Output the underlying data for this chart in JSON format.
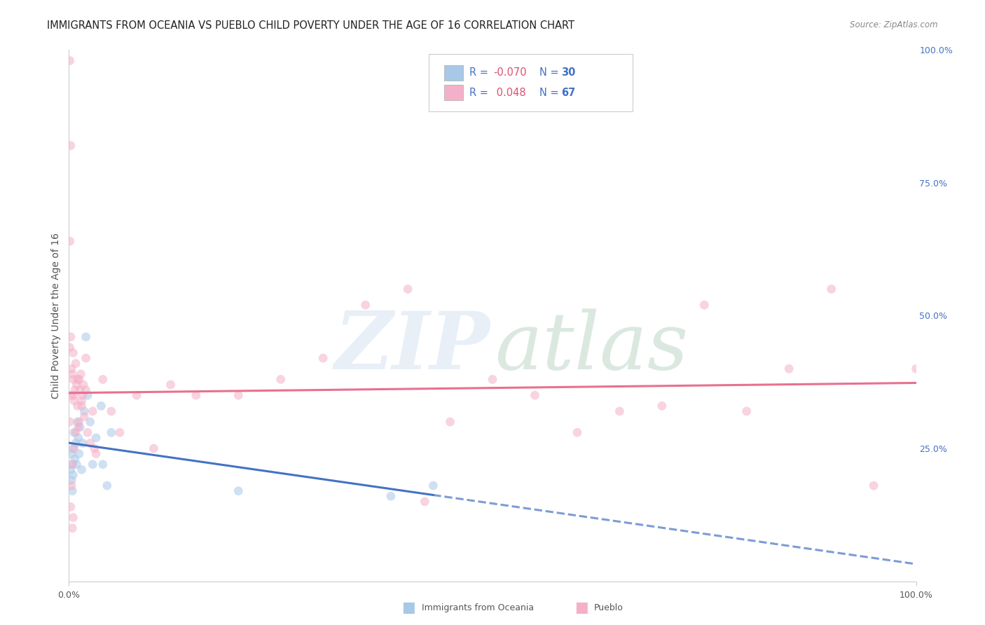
{
  "title": "IMMIGRANTS FROM OCEANIA VS PUEBLO CHILD POVERTY UNDER THE AGE OF 16 CORRELATION CHART",
  "source": "Source: ZipAtlas.com",
  "ylabel": "Child Poverty Under the Age of 16",
  "right_yticks": [
    "100.0%",
    "75.0%",
    "50.0%",
    "25.0%"
  ],
  "right_ytick_vals": [
    1.0,
    0.75,
    0.5,
    0.25
  ],
  "xtick_labels": [
    "0.0%",
    "100.0%"
  ],
  "xtick_vals": [
    0.0,
    1.0
  ],
  "xlim": [
    0,
    1.0
  ],
  "ylim": [
    0,
    1.0
  ],
  "blue_color": "#a8c8e8",
  "blue_line_color": "#4472c4",
  "pink_color": "#f4b0c8",
  "pink_line_color": "#e87090",
  "scatter_size": 85,
  "scatter_alpha": 0.55,
  "grid_color": "#d8d8d8",
  "background": "#ffffff",
  "right_tick_color": "#4472c4",
  "title_fontsize": 10.5,
  "source_fontsize": 8.5,
  "ylabel_fontsize": 10,
  "tick_fontsize": 9,
  "legend_text_color": "#4472c4",
  "legend_r_color": "#e05070",
  "watermark_zip_color": "#b8d0e8",
  "watermark_atlas_color": "#90b8a0",
  "watermark_alpha": 0.32,
  "blue_R": -0.07,
  "blue_N": 30,
  "pink_R": 0.048,
  "pink_N": 67,
  "blue_x": [
    0.002,
    0.003,
    0.003,
    0.004,
    0.004,
    0.005,
    0.005,
    0.006,
    0.007,
    0.008,
    0.009,
    0.01,
    0.011,
    0.012,
    0.013,
    0.015,
    0.016,
    0.018,
    0.02,
    0.022,
    0.025,
    0.028,
    0.032,
    0.038,
    0.04,
    0.045,
    0.05,
    0.2,
    0.38,
    0.43
  ],
  "blue_y": [
    0.21,
    0.19,
    0.24,
    0.17,
    0.22,
    0.25,
    0.2,
    0.28,
    0.23,
    0.26,
    0.22,
    0.3,
    0.27,
    0.24,
    0.29,
    0.21,
    0.26,
    0.32,
    0.46,
    0.35,
    0.3,
    0.22,
    0.27,
    0.33,
    0.22,
    0.18,
    0.28,
    0.17,
    0.16,
    0.18
  ],
  "pink_x": [
    0.001,
    0.001,
    0.002,
    0.002,
    0.003,
    0.003,
    0.004,
    0.004,
    0.005,
    0.005,
    0.006,
    0.006,
    0.007,
    0.008,
    0.009,
    0.01,
    0.011,
    0.012,
    0.013,
    0.014,
    0.015,
    0.016,
    0.017,
    0.018,
    0.02,
    0.022,
    0.025,
    0.028,
    0.032,
    0.04,
    0.05,
    0.06,
    0.08,
    0.1,
    0.12,
    0.15,
    0.2,
    0.25,
    0.3,
    0.35,
    0.4,
    0.42,
    0.45,
    0.5,
    0.55,
    0.6,
    0.65,
    0.7,
    0.75,
    0.8,
    0.85,
    0.9,
    0.95,
    1.0,
    0.001,
    0.001,
    0.002,
    0.003,
    0.004,
    0.005,
    0.006,
    0.008,
    0.01,
    0.012,
    0.015,
    0.02,
    0.03
  ],
  "pink_y": [
    0.44,
    0.3,
    0.46,
    0.14,
    0.4,
    0.18,
    0.39,
    0.1,
    0.38,
    0.12,
    0.34,
    0.25,
    0.36,
    0.41,
    0.37,
    0.33,
    0.29,
    0.38,
    0.36,
    0.39,
    0.33,
    0.35,
    0.37,
    0.31,
    0.42,
    0.28,
    0.26,
    0.32,
    0.24,
    0.38,
    0.32,
    0.28,
    0.35,
    0.25,
    0.37,
    0.35,
    0.35,
    0.38,
    0.42,
    0.52,
    0.55,
    0.15,
    0.3,
    0.38,
    0.35,
    0.28,
    0.32,
    0.33,
    0.52,
    0.32,
    0.4,
    0.55,
    0.18,
    0.4,
    0.98,
    0.64,
    0.82,
    0.35,
    0.22,
    0.43,
    0.35,
    0.28,
    0.38,
    0.3,
    0.34,
    0.36,
    0.25
  ],
  "bottom_legend": [
    {
      "name": "Immigrants from Oceania",
      "color": "#a8c8e8"
    },
    {
      "name": "Pueblo",
      "color": "#f4b0c8"
    }
  ]
}
